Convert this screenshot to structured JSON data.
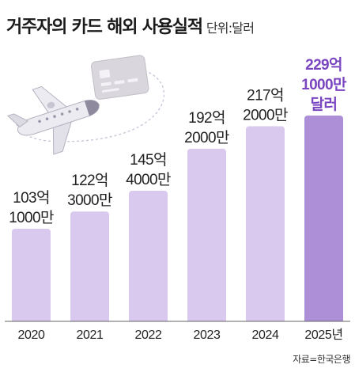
{
  "header": {
    "title": "거주자의 카드 해외 사용실적",
    "unit": "단위:달러"
  },
  "source": "자료=한국은행",
  "colors": {
    "bar": "#dac9ee",
    "bar_highlight": "#ad8fd8",
    "label": "#222222",
    "label_highlight": "#7a45c0",
    "axis": "#666666"
  },
  "illustration": {
    "icons": [
      "airplane-icon",
      "credit-card-icon"
    ]
  },
  "chart_data": {
    "type": "bar",
    "title": "거주자의 카드 해외 사용실적",
    "unit": "단위:달러",
    "categories": [
      "2020",
      "2021",
      "2022",
      "2023",
      "2024",
      "2025년"
    ],
    "values": [
      10310000000,
      12230000000,
      14540000000,
      19220000000,
      21720000000,
      22910000000
    ],
    "data_labels": [
      [
        "103억",
        "1000만"
      ],
      [
        "122억",
        "3000만"
      ],
      [
        "145억",
        "4000만"
      ],
      [
        "192억",
        "2000만"
      ],
      [
        "217억",
        "2000만"
      ],
      [
        "229억",
        "1000만",
        "달러"
      ]
    ],
    "highlight_index": 5,
    "ylim": [
      0,
      23000000000
    ],
    "grid": false,
    "legend": "none"
  }
}
